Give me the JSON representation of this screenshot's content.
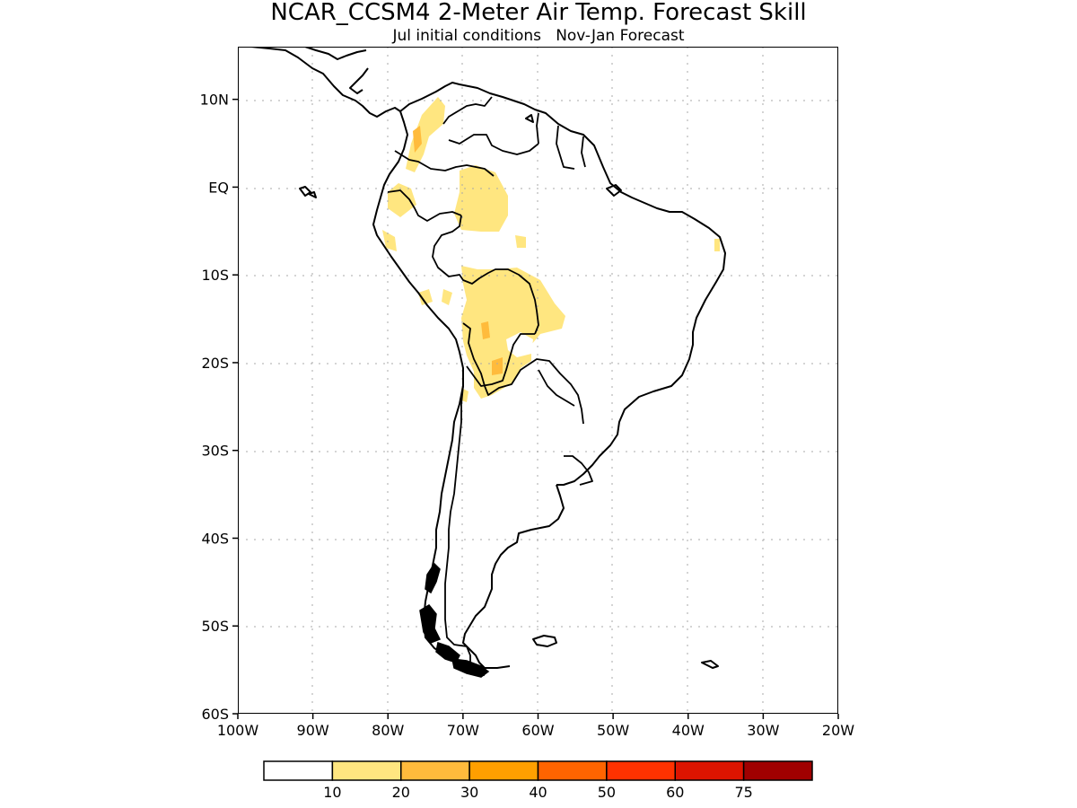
{
  "title": "NCAR_CCSM4 2-Meter Air Temp. Forecast Skill",
  "subtitle": "Jul initial conditions   Nov-Jan Forecast",
  "map": {
    "lon_range": [
      -100,
      -20
    ],
    "lat_range": [
      -60,
      16
    ],
    "lon_ticks": [
      {
        "value": -100,
        "label": "100W"
      },
      {
        "value": -90,
        "label": "90W"
      },
      {
        "value": -80,
        "label": "80W"
      },
      {
        "value": -70,
        "label": "70W"
      },
      {
        "value": -60,
        "label": "60W"
      },
      {
        "value": -50,
        "label": "50W"
      },
      {
        "value": -40,
        "label": "40W"
      },
      {
        "value": -30,
        "label": "30W"
      },
      {
        "value": -20,
        "label": "20W"
      }
    ],
    "lat_ticks": [
      {
        "value": 10,
        "label": "10N"
      },
      {
        "value": 0,
        "label": "EQ"
      },
      {
        "value": -10,
        "label": "10S"
      },
      {
        "value": -20,
        "label": "20S"
      },
      {
        "value": -30,
        "label": "30S"
      },
      {
        "value": -40,
        "label": "40S"
      },
      {
        "value": -50,
        "label": "50S"
      },
      {
        "value": -60,
        "label": "60S"
      }
    ],
    "grid": "dotted"
  },
  "colorbar": {
    "colors": [
      "#ffffff",
      "#ffe680",
      "#ffbb3c",
      "#ff9f00",
      "#ff6400",
      "#ff3200",
      "#dc1400",
      "#a00000"
    ],
    "labels": [
      "10",
      "20",
      "30",
      "40",
      "50",
      "60",
      "75"
    ]
  }
}
